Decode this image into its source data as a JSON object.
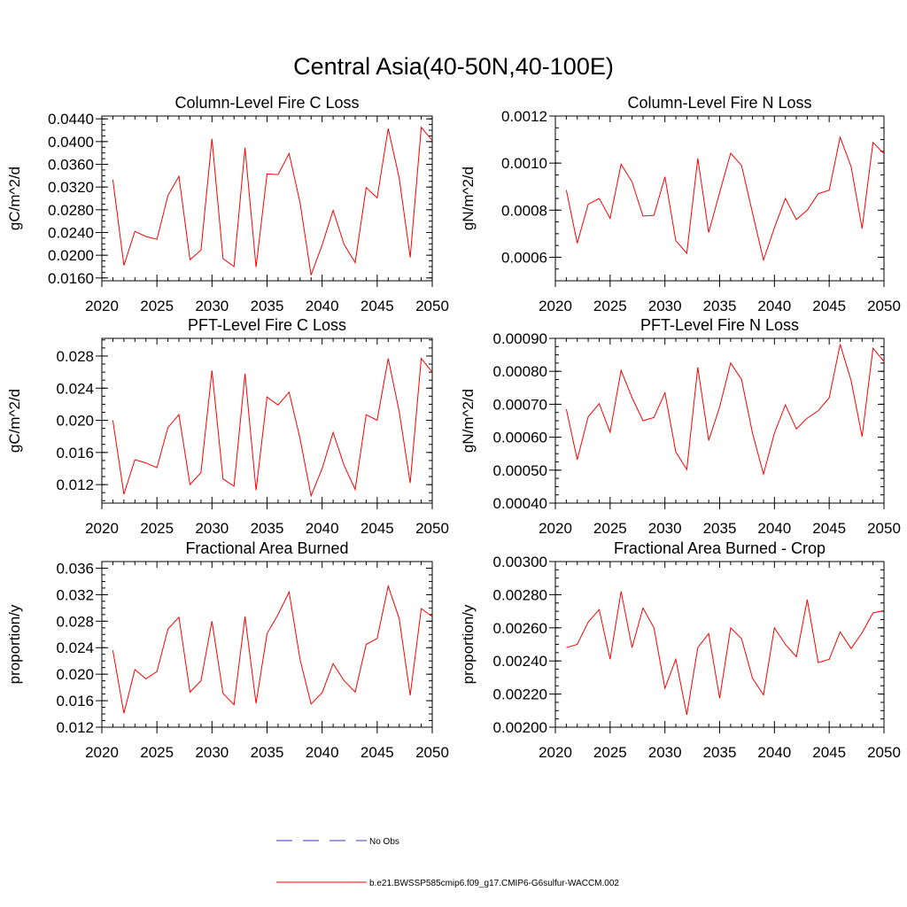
{
  "figure": {
    "title": "Central Asia(40-50N,40-100E)"
  },
  "legend": {
    "placement": "bottom-center",
    "entries": [
      {
        "label": "No Obs",
        "color": "#3a3ab0",
        "style": "dashed"
      },
      {
        "label": "b.e21.BWSSP585cmip6.f09_g17.CMIP6-G6sulfur-WACCM.002",
        "color": "#ff0000",
        "style": "solid"
      }
    ]
  },
  "chart_data": [
    {
      "type": "line",
      "title": "Column-Level Fire C Loss",
      "ylabel": "gC/m^2/d",
      "xlim": [
        2020,
        2050
      ],
      "ylim": [
        0.0155,
        0.0445
      ],
      "xticks": [
        "2020",
        "2025",
        "2030",
        "2035",
        "2040",
        "2045",
        "2050"
      ],
      "yticks": [
        "0.0160",
        "0.0200",
        "0.0240",
        "0.0280",
        "0.0320",
        "0.0360",
        "0.0400",
        "0.0440"
      ],
      "x": [
        2021,
        2022,
        2023,
        2024,
        2025,
        2026,
        2027,
        2028,
        2029,
        2030,
        2031,
        2032,
        2033,
        2034,
        2035,
        2036,
        2037,
        2038,
        2039,
        2040,
        2041,
        2042,
        2043,
        2044,
        2045,
        2046,
        2047,
        2048,
        2049,
        2050
      ],
      "series": [
        {
          "color": "#ff0000",
          "values": [
            0.0333,
            0.0182,
            0.0242,
            0.0233,
            0.0228,
            0.0305,
            0.0339,
            0.0192,
            0.0209,
            0.0405,
            0.0194,
            0.018,
            0.0389,
            0.0179,
            0.0343,
            0.0342,
            0.0379,
            0.0292,
            0.0165,
            0.0218,
            0.0279,
            0.0219,
            0.0187,
            0.0319,
            0.0301,
            0.0423,
            0.0336,
            0.0196,
            0.0425,
            0.0402
          ]
        }
      ]
    },
    {
      "type": "line",
      "title": "Column-Level Fire N Loss",
      "ylabel": "gN/m^2/d",
      "xlim": [
        2020,
        2050
      ],
      "ylim": [
        0.0005,
        0.0012
      ],
      "xticks": [
        "2020",
        "2025",
        "2030",
        "2035",
        "2040",
        "2045",
        "2050"
      ],
      "yticks": [
        "0.0006",
        "0.0008",
        "0.0010",
        "0.0012"
      ],
      "x": [
        2021,
        2022,
        2023,
        2024,
        2025,
        2026,
        2027,
        2028,
        2029,
        2030,
        2031,
        2032,
        2033,
        2034,
        2035,
        2036,
        2037,
        2038,
        2039,
        2040,
        2041,
        2042,
        2043,
        2044,
        2045,
        2046,
        2047,
        2048,
        2049,
        2050
      ],
      "series": [
        {
          "color": "#ff0000",
          "values": [
            0.000885,
            0.00066,
            0.000825,
            0.00085,
            0.000765,
            0.000995,
            0.00092,
            0.000775,
            0.000778,
            0.000942,
            0.00067,
            0.000617,
            0.00102,
            0.000705,
            0.000875,
            0.001042,
            0.00099,
            0.000788,
            0.000588,
            0.000725,
            0.00085,
            0.00076,
            0.0008,
            0.00087,
            0.000885,
            0.00111,
            0.000985,
            0.000722,
            0.001088,
            0.00104
          ]
        }
      ]
    },
    {
      "type": "line",
      "title": "PFT-Level Fire C Loss",
      "ylabel": "gC/m^2/d",
      "xlim": [
        2020,
        2050
      ],
      "ylim": [
        0.0097,
        0.0302
      ],
      "xticks": [
        "2020",
        "2025",
        "2030",
        "2035",
        "2040",
        "2045",
        "2050"
      ],
      "yticks": [
        "0.012",
        "0.016",
        "0.020",
        "0.024",
        "0.028"
      ],
      "x": [
        2021,
        2022,
        2023,
        2024,
        2025,
        2026,
        2027,
        2028,
        2029,
        2030,
        2031,
        2032,
        2033,
        2034,
        2035,
        2036,
        2037,
        2038,
        2039,
        2040,
        2041,
        2042,
        2043,
        2044,
        2045,
        2046,
        2047,
        2048,
        2049,
        2050
      ],
      "series": [
        {
          "color": "#ff0000",
          "values": [
            0.02,
            0.0108,
            0.0151,
            0.0147,
            0.0141,
            0.0191,
            0.0207,
            0.012,
            0.0135,
            0.0262,
            0.0127,
            0.0118,
            0.0258,
            0.0113,
            0.0229,
            0.0219,
            0.0235,
            0.0177,
            0.0106,
            0.014,
            0.0185,
            0.0144,
            0.0114,
            0.0207,
            0.02,
            0.0277,
            0.0211,
            0.0122,
            0.0277,
            0.026
          ]
        }
      ]
    },
    {
      "type": "line",
      "title": "PFT-Level Fire N Loss",
      "ylabel": "gN/m^2/d",
      "xlim": [
        2020,
        2050
      ],
      "ylim": [
        0.0004,
        0.0009
      ],
      "xticks": [
        "2020",
        "2025",
        "2030",
        "2035",
        "2040",
        "2045",
        "2050"
      ],
      "yticks": [
        "0.00040",
        "0.00050",
        "0.00060",
        "0.00070",
        "0.00080",
        "0.00090"
      ],
      "x": [
        2021,
        2022,
        2023,
        2024,
        2025,
        2026,
        2027,
        2028,
        2029,
        2030,
        2031,
        2032,
        2033,
        2034,
        2035,
        2036,
        2037,
        2038,
        2039,
        2040,
        2041,
        2042,
        2043,
        2044,
        2045,
        2046,
        2047,
        2048,
        2049,
        2050
      ],
      "series": [
        {
          "color": "#ff0000",
          "values": [
            0.000685,
            0.000532,
            0.000662,
            0.000702,
            0.000615,
            0.000803,
            0.00072,
            0.00065,
            0.00066,
            0.000735,
            0.000555,
            0.000502,
            0.000812,
            0.00059,
            0.000692,
            0.000825,
            0.000775,
            0.000612,
            0.000488,
            0.000612,
            0.000698,
            0.000625,
            0.000658,
            0.00068,
            0.00072,
            0.000882,
            0.000772,
            0.000602,
            0.00087,
            0.00083
          ]
        }
      ]
    },
    {
      "type": "line",
      "title": "Fractional Area Burned",
      "ylabel": "proportion/y",
      "xlim": [
        2020,
        2050
      ],
      "ylim": [
        0.012,
        0.037
      ],
      "xticks": [
        "2020",
        "2025",
        "2030",
        "2035",
        "2040",
        "2045",
        "2050"
      ],
      "yticks": [
        "0.012",
        "0.016",
        "0.020",
        "0.024",
        "0.028",
        "0.032",
        "0.036"
      ],
      "x": [
        2021,
        2022,
        2023,
        2024,
        2025,
        2026,
        2027,
        2028,
        2029,
        2030,
        2031,
        2032,
        2033,
        2034,
        2035,
        2036,
        2037,
        2038,
        2039,
        2040,
        2041,
        2042,
        2043,
        2044,
        2045,
        2046,
        2047,
        2048,
        2049,
        2050
      ],
      "series": [
        {
          "color": "#ff0000",
          "values": [
            0.0236,
            0.0141,
            0.0207,
            0.0193,
            0.0204,
            0.0268,
            0.0286,
            0.0173,
            0.019,
            0.028,
            0.0171,
            0.0154,
            0.0287,
            0.0156,
            0.0261,
            0.029,
            0.0324,
            0.0222,
            0.0155,
            0.0172,
            0.0216,
            0.019,
            0.0173,
            0.0245,
            0.0254,
            0.0333,
            0.0284,
            0.0168,
            0.0299,
            0.0287
          ]
        }
      ]
    },
    {
      "type": "line",
      "title": "Fractional Area Burned - Crop",
      "ylabel": "proportion/y",
      "xlim": [
        2020,
        2050
      ],
      "ylim": [
        0.002,
        0.003
      ],
      "xticks": [
        "2020",
        "2025",
        "2030",
        "2035",
        "2040",
        "2045",
        "2050"
      ],
      "yticks": [
        "0.00200",
        "0.00220",
        "0.00240",
        "0.00260",
        "0.00280",
        "0.00300"
      ],
      "x": [
        2021,
        2022,
        2023,
        2024,
        2025,
        2026,
        2027,
        2028,
        2029,
        2030,
        2031,
        2032,
        2033,
        2034,
        2035,
        2036,
        2037,
        2038,
        2039,
        2040,
        2041,
        2042,
        2043,
        2044,
        2045,
        2046,
        2047,
        2048,
        2049,
        2050
      ],
      "series": [
        {
          "color": "#ff0000",
          "values": [
            0.00248,
            0.0025,
            0.002635,
            0.00271,
            0.00241,
            0.00282,
            0.00248,
            0.00272,
            0.0026,
            0.002235,
            0.00241,
            0.002075,
            0.00248,
            0.002565,
            0.002175,
            0.0026,
            0.002535,
            0.002295,
            0.002195,
            0.0026,
            0.0025,
            0.002425,
            0.00277,
            0.00239,
            0.00241,
            0.002575,
            0.002475,
            0.00257,
            0.00269,
            0.002705
          ]
        }
      ]
    }
  ]
}
